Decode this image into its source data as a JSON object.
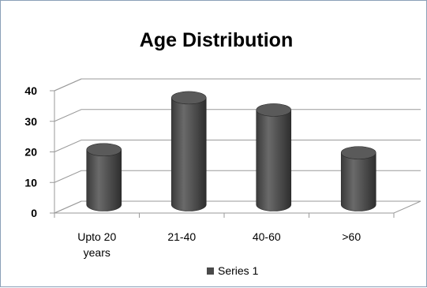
{
  "chart_data": {
    "type": "bar",
    "title": "Age Distribution",
    "categories": [
      "Upto 20 years",
      "21-40",
      "40-60",
      ">60"
    ],
    "category_lines": [
      [
        "Upto 20",
        "years"
      ],
      [
        "21-40"
      ],
      [
        "40-60"
      ],
      [
        ">60"
      ]
    ],
    "series": [
      {
        "name": "Series 1",
        "values": [
          18,
          35,
          31,
          17
        ],
        "color": "#4a4a4a"
      }
    ],
    "ylim": [
      0,
      40
    ],
    "yticks": [
      0,
      10,
      20,
      30,
      40
    ],
    "xlabel": "",
    "ylabel": "",
    "grid": true,
    "legend": "bottom",
    "style": "3d-cylinder"
  }
}
